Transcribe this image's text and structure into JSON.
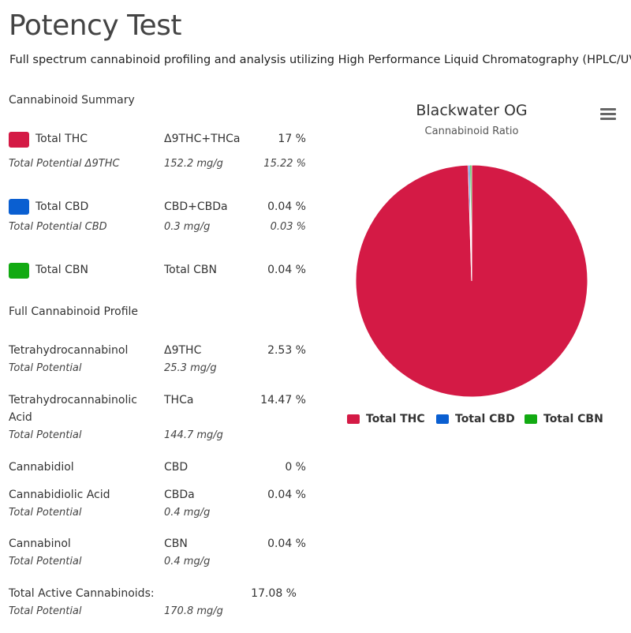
{
  "title": "Potency Test",
  "subtitle": "Full spectrum cannabinoid profiling and analysis utilizing High Performance Liquid Chromatography (HPLC/UV)",
  "summary": {
    "heading": "Cannabinoid Summary",
    "rows": [
      {
        "name": "Total THC",
        "formula": "Δ9THC+THCa",
        "percent": "17 %",
        "color": "#d41a45",
        "sub_name": "Total Potential Δ9THC",
        "sub_amount": "152.2 mg/g",
        "sub_percent": "15.22 %"
      },
      {
        "name": "Total CBD",
        "formula": "CBD+CBDa",
        "percent": "0.04 %",
        "color": "#0a5fd1",
        "sub_name": "Total Potential CBD",
        "sub_amount": "0.3 mg/g",
        "sub_percent": "0.03 %"
      },
      {
        "name": "Total CBN",
        "formula": "Total CBN",
        "percent": "0.04 %",
        "color": "#12aa12"
      }
    ]
  },
  "profile": {
    "heading": "Full Cannabinoid Profile",
    "rows": [
      {
        "name": "Tetrahydrocannabinol",
        "abbr": "Δ9THC",
        "percent": "2.53 %",
        "sub_label": "Total Potential",
        "sub_amount": "25.3 mg/g"
      },
      {
        "name": "Tetrahydrocannabinolic",
        "name2": "Acid",
        "abbr": "THCa",
        "percent": "14.47 %",
        "sub_label": "Total Potential",
        "sub_amount": "144.7 mg/g"
      },
      {
        "name": "Cannabidiol",
        "abbr": "CBD",
        "percent": "0 %"
      },
      {
        "name": "Cannabidiolic Acid",
        "abbr": "CBDa",
        "percent": "0.04 %",
        "sub_label": "Total Potential",
        "sub_amount": "0.4 mg/g"
      },
      {
        "name": "Cannabinol",
        "abbr": "CBN",
        "percent": "0.04 %",
        "sub_label": "Total Potential",
        "sub_amount": "0.4 mg/g"
      }
    ],
    "total": {
      "name": "Total Active Cannabinoids:",
      "percent": "17.08 %",
      "sub_label": "Total Potential",
      "sub_amount": "170.8 mg/g"
    }
  },
  "chart_data": {
    "type": "pie",
    "title": "Blackwater OG",
    "subtitle": "Cannabinoid Ratio",
    "categories": [
      "Total THC",
      "Total CBD",
      "Total CBN"
    ],
    "values": [
      17,
      0.04,
      0.04
    ],
    "colors": [
      "#d41a45",
      "#0a5fd1",
      "#12aa12"
    ],
    "legend_position": "bottom-center",
    "menu_icon": "hamburger-menu-icon"
  }
}
